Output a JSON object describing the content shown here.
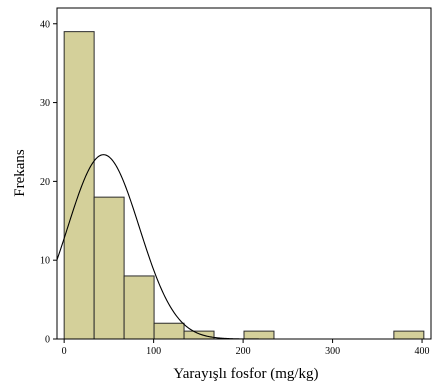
{
  "chart_data": {
    "type": "bar",
    "subtype": "histogram",
    "xlabel": "Yarayışlı fosfor (mg/kg)",
    "ylabel": "Frekans",
    "xlim": [
      -8,
      410
    ],
    "ylim": [
      0,
      42
    ],
    "xticks": [
      0,
      100,
      200,
      300,
      400
    ],
    "yticks": [
      0,
      10,
      20,
      30,
      40
    ],
    "bin_width": 33.5,
    "bins": [
      {
        "x0": 0,
        "x1": 33.5,
        "count": 39
      },
      {
        "x0": 33.5,
        "x1": 67,
        "count": 18
      },
      {
        "x0": 67,
        "x1": 100.5,
        "count": 8
      },
      {
        "x0": 100.5,
        "x1": 134,
        "count": 2
      },
      {
        "x0": 134,
        "x1": 167.5,
        "count": 1
      },
      {
        "x0": 201,
        "x1": 234.5,
        "count": 1
      },
      {
        "x0": 368.5,
        "x1": 402,
        "count": 1
      }
    ],
    "normal_curve": {
      "mean": 44,
      "sd": 40
    },
    "colors": {
      "bar_fill": "#d4d09a",
      "bar_stroke": "#2b2b2b",
      "curve": "#000000"
    },
    "grid": false,
    "legend": "none"
  }
}
